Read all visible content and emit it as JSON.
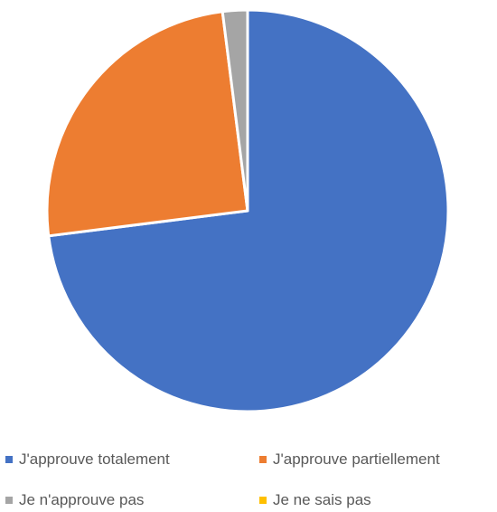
{
  "chart_data": {
    "type": "pie",
    "title": "",
    "categories": [
      "J'approuve totalement",
      "J'approuve partiellement",
      "Je n'approuve pas",
      "Je ne sais pas"
    ],
    "values": [
      73,
      25,
      2,
      0
    ],
    "colors": [
      "#4472C4",
      "#ED7D31",
      "#A5A5A5",
      "#FFC000"
    ],
    "start_angle": "12 o'clock",
    "direction": "clockwise",
    "legend_position": "bottom"
  }
}
